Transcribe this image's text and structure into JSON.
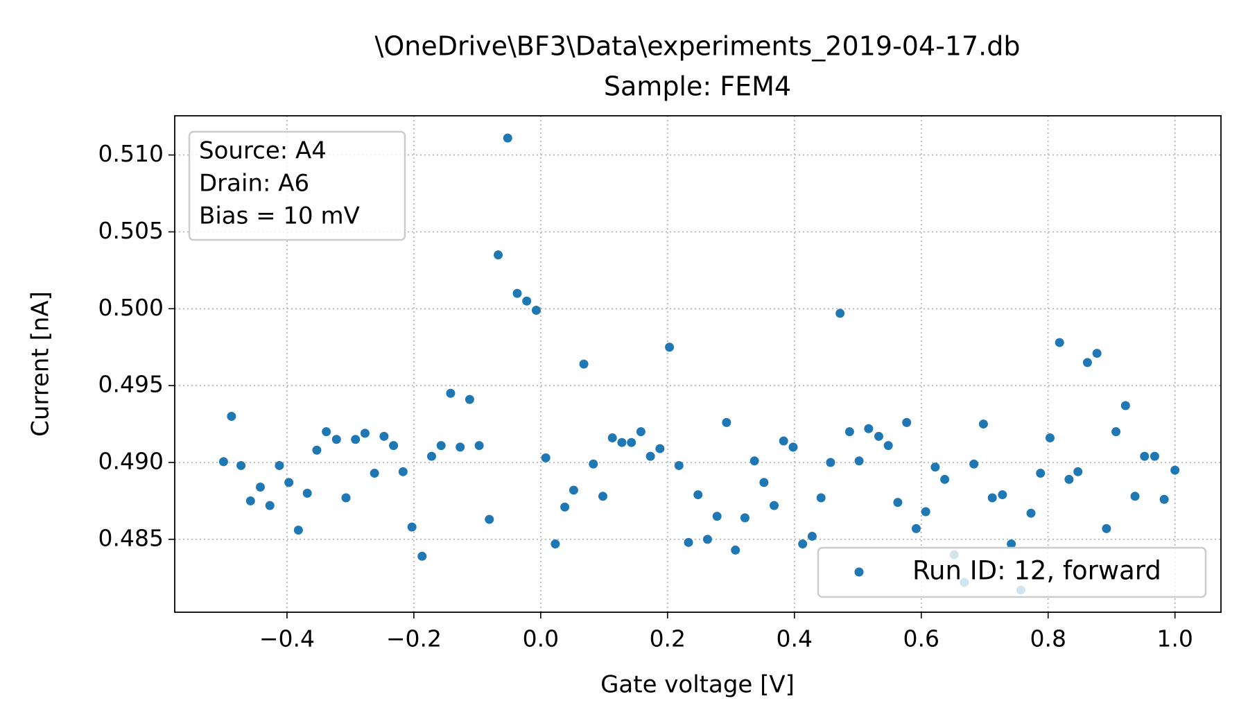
{
  "chart_data": {
    "type": "scatter",
    "title": "\\OneDrive\\BF3\\Data\\experiments_2019-04-17.db",
    "subtitle": "Sample: FEM4",
    "x_label": "Gate voltage [V]",
    "y_label": "Current [nA]",
    "annotation": [
      "Source: A4",
      "Drain: A6",
      "Bias = 10 mV"
    ],
    "x": [
      -0.5,
      -0.4875,
      -0.4725,
      -0.4575,
      -0.442,
      -0.427,
      -0.412,
      -0.397,
      -0.382,
      -0.368,
      -0.353,
      -0.338,
      -0.322,
      -0.307,
      -0.292,
      -0.277,
      -0.262,
      -0.247,
      -0.232,
      -0.217,
      -0.203,
      -0.187,
      -0.172,
      -0.157,
      -0.142,
      -0.127,
      -0.112,
      -0.097,
      -0.081,
      -0.067,
      -0.052,
      -0.037,
      -0.022,
      -0.007,
      0.008,
      0.023,
      0.038,
      0.052,
      0.068,
      0.083,
      0.098,
      0.113,
      0.128,
      0.143,
      0.158,
      0.173,
      0.188,
      0.203,
      0.218,
      0.233,
      0.248,
      0.263,
      0.278,
      0.293,
      0.307,
      0.322,
      0.337,
      0.352,
      0.368,
      0.383,
      0.398,
      0.413,
      0.428,
      0.442,
      0.457,
      0.472,
      0.487,
      0.502,
      0.517,
      0.533,
      0.548,
      0.563,
      0.577,
      0.592,
      0.607,
      0.622,
      0.637,
      0.652,
      0.668,
      0.683,
      0.698,
      0.712,
      0.728,
      0.742,
      0.757,
      0.773,
      0.788,
      0.803,
      0.818,
      0.833,
      0.847,
      0.862,
      0.877,
      0.892,
      0.907,
      0.922,
      0.937,
      0.952,
      0.968,
      0.983,
      1.0
    ],
    "series": [
      {
        "name": "Run ID: 12, forward",
        "color": "#1f77b4",
        "values": [
          0.49005,
          0.493,
          0.4898,
          0.4875,
          0.4884,
          0.4872,
          0.4898,
          0.4887,
          0.4856,
          0.488,
          0.4908,
          0.492,
          0.4915,
          0.4877,
          0.4915,
          0.4919,
          0.4893,
          0.4917,
          0.4911,
          0.4894,
          0.4858,
          0.4839,
          0.4904,
          0.4911,
          0.4945,
          0.491,
          0.4941,
          0.4911,
          0.4863,
          0.5035,
          0.5111,
          0.501,
          0.5005,
          0.4999,
          0.4903,
          0.4847,
          0.4871,
          0.4882,
          0.4964,
          0.4899,
          0.4878,
          0.4916,
          0.4913,
          0.4913,
          0.492,
          0.4904,
          0.4909,
          0.4975,
          0.4898,
          0.4848,
          0.4879,
          0.485,
          0.4865,
          0.4926,
          0.4843,
          0.4864,
          0.4901,
          0.4887,
          0.4872,
          0.4914,
          0.491,
          0.4847,
          0.4852,
          0.4877,
          0.49,
          0.4997,
          0.492,
          0.4901,
          0.4922,
          0.4917,
          0.4911,
          0.4874,
          0.4926,
          0.4857,
          0.4868,
          0.4897,
          0.4889,
          0.484,
          0.4822,
          0.4899,
          0.4925,
          0.4877,
          0.4879,
          0.4847,
          0.4817,
          0.4867,
          0.4893,
          0.4916,
          0.4978,
          0.4889,
          0.4894,
          0.4965,
          0.4971,
          0.4857,
          0.492,
          0.4937,
          0.4878,
          0.4904,
          0.4904,
          0.4876,
          0.4895
        ]
      }
    ],
    "xlim": [
      -0.577,
      1.0725
    ],
    "ylim": [
      0.48026,
      0.51255
    ],
    "xticks": [
      {
        "value": -0.4,
        "label": "−0.4"
      },
      {
        "value": -0.2,
        "label": "−0.2"
      },
      {
        "value": 0,
        "label": "0.0"
      },
      0.2,
      0.4,
      0.6,
      0.8,
      {
        "value": 1,
        "label": "1.0"
      }
    ],
    "yticks": [
      0.485,
      {
        "value": 0.49,
        "label": "0.490"
      },
      {
        "value": 0.495,
        "label": "0.495"
      },
      {
        "value": 0.5,
        "label": "0.500"
      },
      0.505,
      {
        "value": 0.51,
        "label": "0.510"
      }
    ],
    "grid": true,
    "legend": "lower right"
  }
}
